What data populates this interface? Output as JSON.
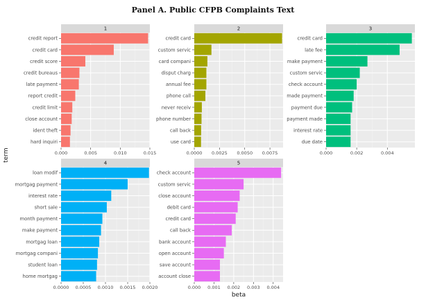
{
  "title": "Panel A. Public CFPB Complaints Text",
  "chart_data": {
    "type": "bar",
    "orientation": "horizontal",
    "xlabel": "beta",
    "ylabel": "term",
    "grid": true,
    "panels": [
      {
        "id": "1",
        "color": "#F8766D",
        "xlim": [
          0,
          0.015
        ],
        "ticks": [
          0,
          0.005,
          0.01,
          0.015
        ],
        "tick_labels": [
          "0.000",
          "0.005",
          "0.010",
          "0.015"
        ],
        "terms": [
          "credit report",
          "credit card",
          "credit score",
          "credit bureaus",
          "late payment",
          "report credit",
          "credit limit",
          "close account",
          "ident theft",
          "hard inquiri"
        ],
        "values": [
          0.0147,
          0.0089,
          0.0041,
          0.0031,
          0.003,
          0.0024,
          0.0019,
          0.0018,
          0.0016,
          0.0015
        ]
      },
      {
        "id": "2",
        "color": "#A3A500",
        "xlim": [
          0,
          0.0088
        ],
        "ticks": [
          0,
          0.0025,
          0.005,
          0.0075
        ],
        "tick_labels": [
          "0.0000",
          "0.0025",
          "0.0050",
          "0.0075"
        ],
        "terms": [
          "credit card",
          "custom servic",
          "card compani",
          "disput charg",
          "annual fee",
          "phone call",
          "never receiv",
          "phone number",
          "call back",
          "use card"
        ],
        "values": [
          0.0087,
          0.0017,
          0.0013,
          0.0012,
          0.0012,
          0.0011,
          0.00075,
          0.00072,
          0.00068,
          0.00067
        ]
      },
      {
        "id": "3",
        "color": "#00BF7D",
        "xlim": [
          0,
          0.0058
        ],
        "ticks": [
          0,
          0.002,
          0.004
        ],
        "tick_labels": [
          "0.000",
          "0.002",
          "0.004"
        ],
        "terms": [
          "credit card",
          "late fee",
          "make payment",
          "custom servic",
          "check account",
          "made payment",
          "payment due",
          "payment made",
          "interest rate",
          "due date"
        ],
        "values": [
          0.0056,
          0.0048,
          0.0027,
          0.0022,
          0.002,
          0.0018,
          0.0017,
          0.0016,
          0.0016,
          0.0016
        ]
      },
      {
        "id": "4",
        "color": "#00B0F6",
        "xlim": [
          0,
          0.002
        ],
        "ticks": [
          0,
          0.0005,
          0.001,
          0.0015,
          0.002
        ],
        "tick_labels": [
          "0.0000",
          "0.0005",
          "0.0010",
          "0.0015",
          "0.0020"
        ],
        "terms": [
          "loan modif",
          "mortgag payment",
          "interest rate",
          "short sale",
          "month payment",
          "make payment",
          "mortgag loan",
          "mortgag compani",
          "student loan",
          "home mortgag"
        ],
        "values": [
          0.00198,
          0.0015,
          0.00113,
          0.00103,
          0.00093,
          0.0009,
          0.00086,
          0.00083,
          0.00081,
          0.00079
        ]
      },
      {
        "id": "5",
        "color": "#E76BF3",
        "xlim": [
          0,
          0.0045
        ],
        "ticks": [
          0,
          0.001,
          0.002,
          0.003,
          0.004
        ],
        "tick_labels": [
          "0.000",
          "0.001",
          "0.002",
          "0.003",
          "0.004"
        ],
        "terms": [
          "check account",
          "custom servic",
          "close account",
          "debit card",
          "credit card",
          "call back",
          "bank account",
          "open account",
          "save account",
          "account close"
        ],
        "values": [
          0.0044,
          0.0025,
          0.0023,
          0.0022,
          0.0021,
          0.0019,
          0.0016,
          0.0015,
          0.0013,
          0.0013
        ]
      }
    ]
  }
}
